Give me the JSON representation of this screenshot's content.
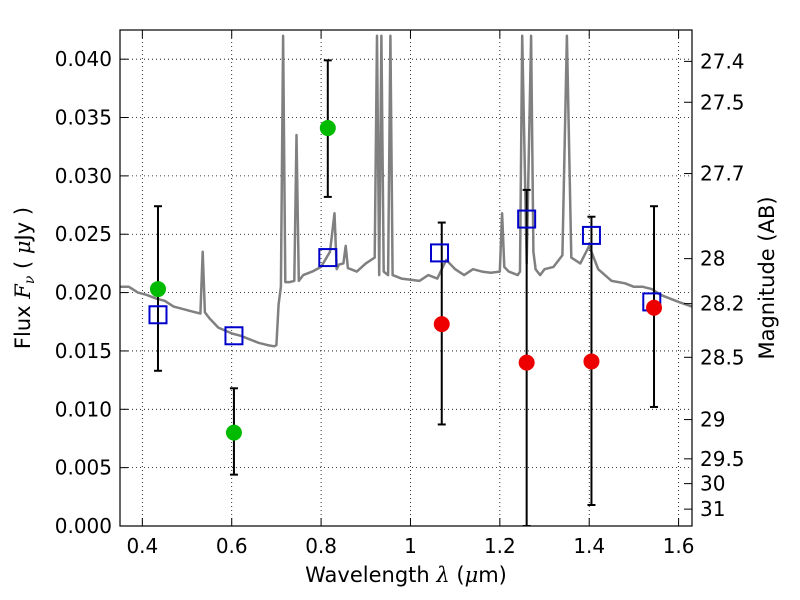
{
  "chart_data": {
    "type": "scatter",
    "xlabel": "Wavelength  λ (μm)",
    "ylabel": "Flux  Fν  ( μJy )",
    "ylabel_right": "Magnitude (AB)",
    "xlim": [
      0.35,
      1.63
    ],
    "ylim": [
      0.0,
      0.0425
    ],
    "grid": true,
    "grid_style": "dotted",
    "x_ticks": [
      0.4,
      0.6,
      0.8,
      1.0,
      1.2,
      1.4,
      1.6
    ],
    "x_tick_labels": [
      "0.4",
      "0.6",
      "0.8",
      "1",
      "1.2",
      "1.4",
      "1.6"
    ],
    "y_ticks": [
      0.0,
      0.005,
      0.01,
      0.015,
      0.02,
      0.025,
      0.03,
      0.035,
      0.04
    ],
    "y_tick_labels": [
      "0.000",
      "0.005",
      "0.010",
      "0.015",
      "0.020",
      "0.025",
      "0.030",
      "0.035",
      "0.040"
    ],
    "mag_ticks": [
      27.4,
      27.5,
      27.7,
      28,
      28.2,
      28.5,
      29,
      29.5,
      30,
      31
    ],
    "mag_tick_labels": [
      "27.4",
      "27.5",
      "27.7",
      "28",
      "28.2",
      "28.5",
      "29",
      "29.5",
      "30",
      "31"
    ],
    "series": [
      {
        "kind": "spectrum-line",
        "color": "#808080",
        "x": [
          0.35,
          0.37,
          0.39,
          0.41,
          0.43,
          0.45,
          0.47,
          0.49,
          0.51,
          0.53,
          0.535,
          0.54,
          0.55,
          0.57,
          0.6,
          0.62,
          0.64,
          0.66,
          0.68,
          0.695,
          0.7,
          0.705,
          0.71,
          0.715,
          0.72,
          0.73,
          0.74,
          0.745,
          0.75,
          0.76,
          0.78,
          0.8,
          0.82,
          0.83,
          0.835,
          0.84,
          0.85,
          0.855,
          0.86,
          0.88,
          0.9,
          0.92,
          0.925,
          0.93,
          0.935,
          0.94,
          0.95,
          0.955,
          0.96,
          0.98,
          1.0,
          1.02,
          1.04,
          1.06,
          1.08,
          1.1,
          1.12,
          1.14,
          1.16,
          1.18,
          1.2,
          1.205,
          1.21,
          1.22,
          1.24,
          1.245,
          1.25,
          1.26,
          1.27,
          1.275,
          1.28,
          1.29,
          1.3,
          1.32,
          1.34,
          1.35,
          1.36,
          1.38,
          1.4,
          1.42,
          1.45,
          1.48,
          1.5,
          1.52,
          1.54,
          1.56,
          1.58,
          1.6,
          1.63
        ],
        "y": [
          0.0205,
          0.0205,
          0.02,
          0.0198,
          0.0195,
          0.0193,
          0.0188,
          0.0186,
          0.0184,
          0.0182,
          0.0235,
          0.0183,
          0.0178,
          0.017,
          0.0165,
          0.0163,
          0.016,
          0.0157,
          0.0155,
          0.0154,
          0.0155,
          0.019,
          0.0205,
          0.042,
          0.0209,
          0.0209,
          0.021,
          0.0335,
          0.021,
          0.0215,
          0.0218,
          0.0222,
          0.0235,
          0.0268,
          0.022,
          0.0224,
          0.0225,
          0.024,
          0.0221,
          0.0218,
          0.0225,
          0.023,
          0.042,
          0.0215,
          0.042,
          0.0218,
          0.0215,
          0.042,
          0.0215,
          0.0212,
          0.0211,
          0.021,
          0.0215,
          0.0212,
          0.0228,
          0.022,
          0.0215,
          0.022,
          0.0218,
          0.0217,
          0.0218,
          0.0268,
          0.0222,
          0.0218,
          0.0215,
          0.0218,
          0.042,
          0.0225,
          0.042,
          0.0235,
          0.022,
          0.0215,
          0.022,
          0.0222,
          0.0232,
          0.042,
          0.023,
          0.0225,
          0.024,
          0.022,
          0.021,
          0.0208,
          0.0205,
          0.0205,
          0.0203,
          0.0198,
          0.0195,
          0.0192,
          0.0188
        ]
      },
      {
        "kind": "model-photometry",
        "marker": "open-square",
        "color": "#0000cc",
        "x": [
          0.435,
          0.605,
          0.815,
          1.065,
          1.26,
          1.405,
          1.54
        ],
        "y": [
          0.0181,
          0.0163,
          0.023,
          0.0234,
          0.0263,
          0.0249,
          0.0192
        ]
      },
      {
        "kind": "detections",
        "marker": "filled-circle",
        "color": "#00bb00",
        "x": [
          0.435,
          0.605,
          0.815
        ],
        "y": [
          0.0203,
          0.008,
          0.0341
        ],
        "err_low": [
          0.0133,
          0.0044,
          0.0282
        ],
        "err_high": [
          0.0274,
          0.0118,
          0.0399
        ]
      },
      {
        "kind": "non-detections",
        "marker": "filled-circle",
        "color": "#ee0000",
        "x": [
          1.07,
          1.26,
          1.405,
          1.545
        ],
        "y": [
          0.0173,
          0.014,
          0.0141,
          0.0187
        ],
        "err_low": [
          0.0087,
          0.0,
          0.0018,
          0.0102
        ],
        "err_high": [
          0.026,
          0.0288,
          0.0265,
          0.0274
        ]
      }
    ]
  }
}
